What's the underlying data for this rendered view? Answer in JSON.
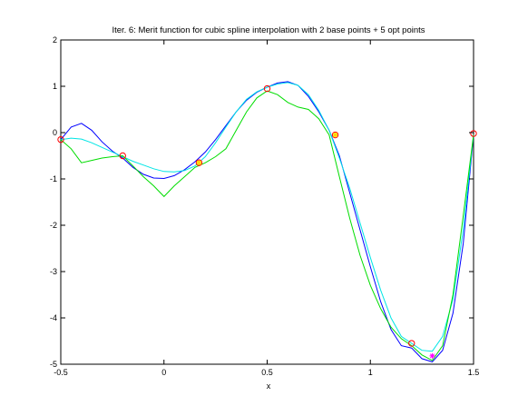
{
  "chart_data": {
    "type": "line",
    "title": "Iter. 6: Merit function for cubic spline interpolation with 2 base points + 5 opt points",
    "xlabel": "x",
    "ylabel": "",
    "xlim": [
      -0.5,
      1.5
    ],
    "ylim": [
      -5,
      2
    ],
    "xticks": [
      -0.5,
      0,
      0.5,
      1,
      1.5
    ],
    "xtick_labels": [
      "-0.5",
      "0",
      "0.5",
      "1",
      "1.5"
    ],
    "yticks": [
      -5,
      -4,
      -3,
      -2,
      -1,
      0,
      1,
      2
    ],
    "ytick_labels": [
      "-5",
      "-4",
      "-3",
      "-2",
      "-1",
      "0",
      "1",
      "2"
    ],
    "grid": false,
    "legend": "none",
    "colors": {
      "merit": "#0000ff",
      "spline": "#00e5e5",
      "interp": "#00dd00",
      "marker_circle": "#ff0000",
      "marker_yellow": "#ffd700",
      "marker_magenta": "#ff00ff"
    },
    "series": [
      {
        "color": "#0000ff",
        "x": [
          -0.5,
          -0.45,
          -0.4,
          -0.35,
          -0.3,
          -0.25,
          -0.2,
          -0.15,
          -0.1,
          -0.05,
          0.0,
          0.05,
          0.1,
          0.15,
          0.2,
          0.25,
          0.3,
          0.35,
          0.4,
          0.45,
          0.5,
          0.55,
          0.6,
          0.65,
          0.7,
          0.75,
          0.8,
          0.85,
          0.9,
          0.95,
          1.0,
          1.05,
          1.1,
          1.15,
          1.2,
          1.25,
          1.3,
          1.35,
          1.4,
          1.45,
          1.5
        ],
        "y": [
          -0.15,
          0.12,
          0.2,
          0.05,
          -0.2,
          -0.4,
          -0.55,
          -0.75,
          -0.9,
          -0.98,
          -0.99,
          -0.93,
          -0.8,
          -0.63,
          -0.42,
          -0.15,
          0.15,
          0.45,
          0.7,
          0.87,
          0.98,
          1.07,
          1.1,
          1.02,
          0.78,
          0.45,
          0.05,
          -0.5,
          -1.3,
          -2.1,
          -2.9,
          -3.65,
          -4.25,
          -4.6,
          -4.65,
          -4.88,
          -4.95,
          -4.7,
          -3.9,
          -2.4,
          -0.05
        ]
      },
      {
        "color": "#00e5e5",
        "x": [
          -0.5,
          -0.45,
          -0.4,
          -0.35,
          -0.3,
          -0.25,
          -0.2,
          -0.15,
          -0.1,
          -0.05,
          0.0,
          0.05,
          0.1,
          0.15,
          0.2,
          0.25,
          0.3,
          0.35,
          0.4,
          0.45,
          0.5,
          0.55,
          0.6,
          0.65,
          0.7,
          0.75,
          0.8,
          0.85,
          0.9,
          0.95,
          1.0,
          1.05,
          1.1,
          1.15,
          1.2,
          1.25,
          1.3,
          1.35,
          1.4,
          1.45,
          1.5
        ],
        "y": [
          -0.15,
          -0.12,
          -0.14,
          -0.22,
          -0.32,
          -0.42,
          -0.52,
          -0.62,
          -0.7,
          -0.78,
          -0.84,
          -0.85,
          -0.82,
          -0.72,
          -0.52,
          -0.22,
          0.12,
          0.45,
          0.72,
          0.88,
          0.98,
          1.05,
          1.08,
          1.02,
          0.82,
          0.48,
          0.05,
          -0.55,
          -1.2,
          -1.95,
          -2.7,
          -3.4,
          -4.0,
          -4.4,
          -4.55,
          -4.7,
          -4.72,
          -4.4,
          -3.6,
          -2.1,
          -0.05
        ]
      },
      {
        "color": "#00dd00",
        "x": [
          -0.5,
          -0.45,
          -0.4,
          -0.35,
          -0.3,
          -0.25,
          -0.2,
          -0.15,
          -0.1,
          -0.05,
          0.0,
          0.05,
          0.1,
          0.15,
          0.2,
          0.25,
          0.3,
          0.35,
          0.4,
          0.45,
          0.5,
          0.55,
          0.6,
          0.65,
          0.7,
          0.75,
          0.8,
          0.85,
          0.9,
          0.95,
          1.0,
          1.05,
          1.1,
          1.15,
          1.2,
          1.25,
          1.3,
          1.35,
          1.4,
          1.45,
          1.5
        ],
        "y": [
          -0.15,
          -0.35,
          -0.65,
          -0.6,
          -0.55,
          -0.52,
          -0.5,
          -0.72,
          -0.95,
          -1.15,
          -1.38,
          -1.15,
          -0.95,
          -0.75,
          -0.65,
          -0.52,
          -0.35,
          0.05,
          0.45,
          0.75,
          0.9,
          0.82,
          0.65,
          0.55,
          0.5,
          0.3,
          -0.05,
          -0.95,
          -1.85,
          -2.65,
          -3.3,
          -3.8,
          -4.2,
          -4.45,
          -4.6,
          -4.8,
          -4.92,
          -4.6,
          -3.5,
          -1.8,
          -0.05
        ]
      }
    ],
    "markers": [
      {
        "type": "circle",
        "color": "#ff0000",
        "x": -0.5,
        "y": -0.15
      },
      {
        "type": "circle",
        "color": "#ff0000",
        "x": -0.2,
        "y": -0.5
      },
      {
        "type": "circle",
        "color": "#ff0000",
        "x": 0.17,
        "y": -0.65
      },
      {
        "type": "circle",
        "color": "#ff0000",
        "x": 0.5,
        "y": 0.95
      },
      {
        "type": "circle",
        "color": "#ff0000",
        "x": 0.83,
        "y": -0.05
      },
      {
        "type": "circle",
        "color": "#ff0000",
        "x": 1.2,
        "y": -4.55
      },
      {
        "type": "circle",
        "color": "#ff0000",
        "x": 1.5,
        "y": -0.02
      },
      {
        "type": "square",
        "color": "#ffd700",
        "x": 0.17,
        "y": -0.65
      },
      {
        "type": "square",
        "color": "#ffd700",
        "x": 0.83,
        "y": -0.05
      },
      {
        "type": "star",
        "color": "#ff00ff",
        "x": 1.3,
        "y": -4.82
      }
    ]
  }
}
